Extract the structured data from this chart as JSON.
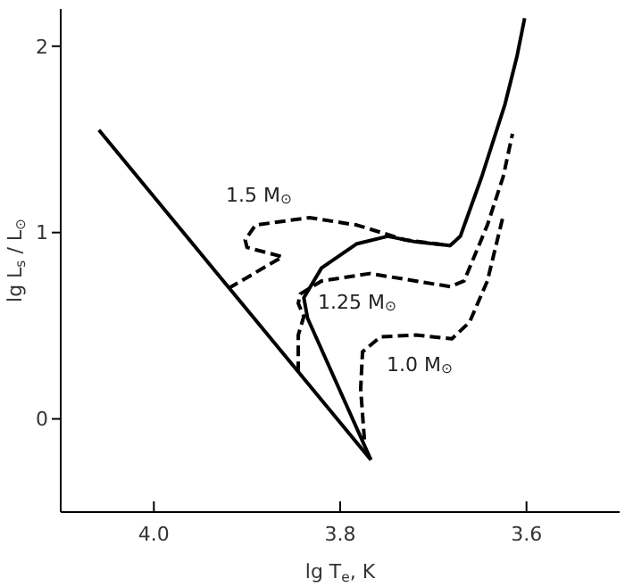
{
  "chart_data": {
    "type": "line",
    "xlabel": "lg T$_{e}$, K",
    "ylabel": "lg L$_{s}$ / L$_{⊙}$",
    "xlim": [
      4.1,
      3.5
    ],
    "xticks": [
      {
        "value": 4,
        "label": "4.0"
      },
      {
        "value": 3.8,
        "label": "3.8"
      },
      {
        "value": 3.6,
        "label": "3.6"
      }
    ],
    "ylim": [
      -0.5,
      2.2
    ],
    "yticks": [
      0,
      1,
      2
    ],
    "grid": false,
    "marker": "none",
    "series": [
      {
        "color": "#000000",
        "line_style": "solid",
        "x": [
          4.059,
          3.767
        ],
        "values": [
          1.55,
          -0.22
        ]
      },
      {
        "color": "#000000",
        "line_style": "solid",
        "x": [
          3.767,
          3.835,
          3.839,
          3.82,
          3.782,
          3.749,
          3.719,
          3.682,
          3.671,
          3.648,
          3.623,
          3.61,
          3.602
        ],
        "values": [
          -0.22,
          0.54,
          0.65,
          0.81,
          0.94,
          0.98,
          0.95,
          0.93,
          0.98,
          1.3,
          1.69,
          1.95,
          2.15
        ]
      },
      {
        "color": "#000000",
        "line_style": "dashed",
        "x": [
          3.92,
          3.862,
          3.9,
          3.902,
          3.891,
          3.833,
          3.782,
          3.73,
          3.682
        ],
        "values": [
          0.7,
          0.87,
          0.92,
          0.96,
          1.04,
          1.08,
          1.04,
          0.96,
          0.93
        ]
      },
      {
        "color": "#000000",
        "line_style": "dashed",
        "x": [
          3.845,
          3.845,
          3.839,
          3.845,
          3.843,
          3.82,
          3.768,
          3.719,
          3.682,
          3.667,
          3.642,
          3.625,
          3.615
        ],
        "values": [
          0.25,
          0.45,
          0.55,
          0.62,
          0.67,
          0.74,
          0.78,
          0.74,
          0.71,
          0.74,
          1.04,
          1.3,
          1.53
        ]
      },
      {
        "color": "#000000",
        "line_style": "dashed",
        "x": [
          3.774,
          3.778,
          3.776,
          3.757,
          3.719,
          3.68,
          3.661,
          3.642,
          3.625
        ],
        "values": [
          -0.11,
          0.16,
          0.36,
          0.44,
          0.45,
          0.43,
          0.52,
          0.74,
          1.09
        ]
      }
    ],
    "annotations": [
      "1.5 M$_{⊙}$",
      "1.25 M$_{⊙}$",
      "1.0 M$_{⊙}$"
    ]
  }
}
